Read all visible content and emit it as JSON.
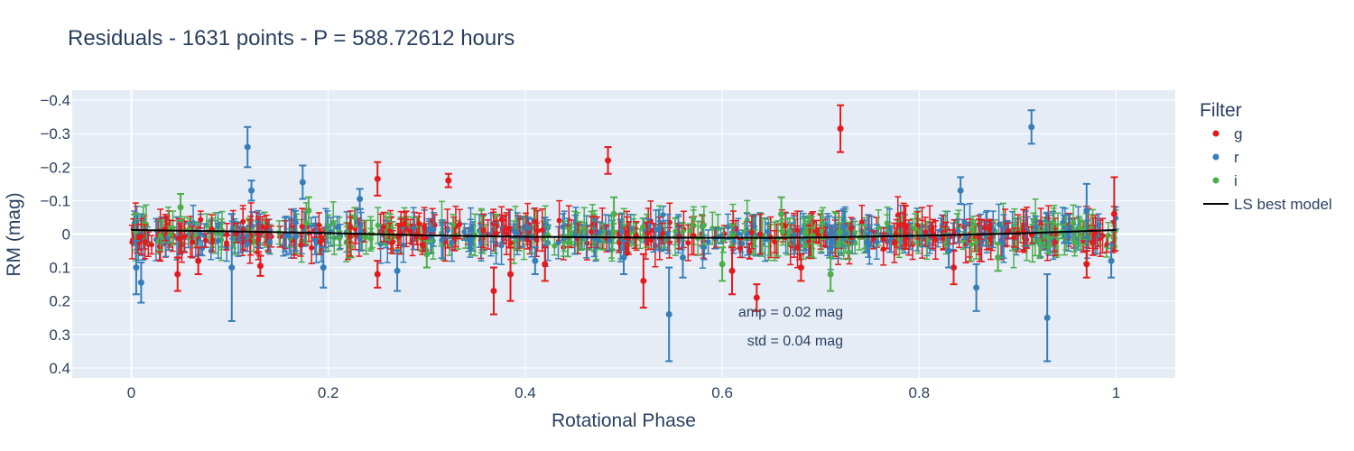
{
  "chart_data": {
    "type": "scatter",
    "title": "Residuals - 1631 points - P = 588.72612 hours",
    "xlabel": "Rotational Phase",
    "ylabel": "RM (mag)",
    "xlim": [
      -0.06,
      1.06
    ],
    "ylim": [
      0.43,
      -0.43
    ],
    "y_reversed": true,
    "x_ticks": [
      0,
      0.2,
      0.4,
      0.6,
      0.8,
      1
    ],
    "x_tick_labels": [
      "0",
      "0.2",
      "0.4",
      "0.6",
      "0.8",
      "1"
    ],
    "y_ticks": [
      -0.4,
      -0.3,
      -0.2,
      -0.1,
      0,
      0.1,
      0.2,
      0.3,
      0.4
    ],
    "y_tick_labels": [
      "−0.4",
      "−0.3",
      "−0.2",
      "−0.1",
      "0",
      "0.1",
      "0.2",
      "0.3",
      "0.4"
    ],
    "grid": true,
    "legend": {
      "title": "Filter",
      "position": "right",
      "entries": [
        {
          "label": "g",
          "color": "#e41a1c",
          "kind": "marker"
        },
        {
          "label": "r",
          "color": "#377eb8",
          "kind": "marker"
        },
        {
          "label": "i",
          "color": "#4daf4a",
          "kind": "marker"
        },
        {
          "label": "LS best model",
          "color": "#000000",
          "kind": "line"
        }
      ]
    },
    "annotations": [
      "amp = 0.02 mag",
      "std = 0.04 mag"
    ],
    "total_points": 1631,
    "series": [
      {
        "name": "g",
        "color": "#e41a1c",
        "points": [
          {
            "x": 0.72,
            "y": -0.315,
            "err": 0.07
          },
          {
            "x": 0.484,
            "y": -0.22,
            "err": 0.04
          },
          {
            "x": 0.322,
            "y": -0.16,
            "err": 0.02
          },
          {
            "x": 0.25,
            "y": -0.165,
            "err": 0.05
          },
          {
            "x": 0.25,
            "y": 0.12,
            "err": 0.04
          },
          {
            "x": 0.131,
            "y": 0.095,
            "err": 0.03
          },
          {
            "x": 0.047,
            "y": 0.12,
            "err": 0.05
          },
          {
            "x": 0.068,
            "y": 0.08,
            "err": 0.04
          },
          {
            "x": 0.368,
            "y": 0.17,
            "err": 0.07
          },
          {
            "x": 0.385,
            "y": 0.12,
            "err": 0.08
          },
          {
            "x": 0.42,
            "y": 0.09,
            "err": 0.05
          },
          {
            "x": 0.52,
            "y": 0.14,
            "err": 0.08
          },
          {
            "x": 0.61,
            "y": 0.11,
            "err": 0.07
          },
          {
            "x": 0.635,
            "y": 0.19,
            "err": 0.04
          },
          {
            "x": 0.68,
            "y": 0.1,
            "err": 0.04
          },
          {
            "x": 0.835,
            "y": 0.1,
            "err": 0.05
          },
          {
            "x": 0.97,
            "y": 0.09,
            "err": 0.04
          },
          {
            "x": 0.998,
            "y": -0.06,
            "err": 0.11
          }
        ]
      },
      {
        "name": "r",
        "color": "#377eb8",
        "points": [
          {
            "x": 0.118,
            "y": -0.26,
            "err": 0.06
          },
          {
            "x": 0.914,
            "y": -0.32,
            "err": 0.05
          },
          {
            "x": 0.174,
            "y": -0.155,
            "err": 0.05
          },
          {
            "x": 0.122,
            "y": -0.13,
            "err": 0.03
          },
          {
            "x": 0.232,
            "y": -0.105,
            "err": 0.03
          },
          {
            "x": 0.842,
            "y": -0.13,
            "err": 0.04
          },
          {
            "x": 0.102,
            "y": 0.1,
            "err": 0.16
          },
          {
            "x": 0.01,
            "y": 0.145,
            "err": 0.06
          },
          {
            "x": 0.005,
            "y": 0.1,
            "err": 0.08
          },
          {
            "x": 0.546,
            "y": 0.24,
            "err": 0.14
          },
          {
            "x": 0.93,
            "y": 0.25,
            "err": 0.13
          },
          {
            "x": 0.858,
            "y": 0.16,
            "err": 0.07
          },
          {
            "x": 0.83,
            "y": 0.05,
            "err": 0.05
          },
          {
            "x": 0.195,
            "y": 0.1,
            "err": 0.06
          },
          {
            "x": 0.27,
            "y": 0.11,
            "err": 0.06
          },
          {
            "x": 0.41,
            "y": 0.08,
            "err": 0.04
          },
          {
            "x": 0.5,
            "y": 0.07,
            "err": 0.05
          },
          {
            "x": 0.56,
            "y": 0.07,
            "err": 0.06
          },
          {
            "x": 0.995,
            "y": 0.08,
            "err": 0.05
          },
          {
            "x": 0.97,
            "y": -0.07,
            "err": 0.08
          }
        ]
      },
      {
        "name": "i",
        "color": "#4daf4a",
        "points": [
          {
            "x": 0.05,
            "y": -0.08,
            "err": 0.04
          },
          {
            "x": 0.18,
            "y": -0.07,
            "err": 0.04
          },
          {
            "x": 0.49,
            "y": -0.06,
            "err": 0.05
          },
          {
            "x": 0.66,
            "y": -0.06,
            "err": 0.05
          },
          {
            "x": 0.71,
            "y": 0.12,
            "err": 0.05
          },
          {
            "x": 0.88,
            "y": 0.07,
            "err": 0.04
          },
          {
            "x": 0.3,
            "y": 0.06,
            "err": 0.04
          },
          {
            "x": 0.6,
            "y": 0.09,
            "err": 0.05
          }
        ]
      }
    ],
    "model": {
      "name": "LS best model",
      "color": "#000000",
      "x": [
        0,
        0.1,
        0.2,
        0.3,
        0.4,
        0.5,
        0.6,
        0.65,
        0.7,
        0.8,
        0.9,
        1
      ],
      "y": [
        -0.012,
        -0.008,
        -0.003,
        0.004,
        0.008,
        0.01,
        0.011,
        0.011,
        0.01,
        0.005,
        -0.002,
        -0.012
      ]
    }
  }
}
